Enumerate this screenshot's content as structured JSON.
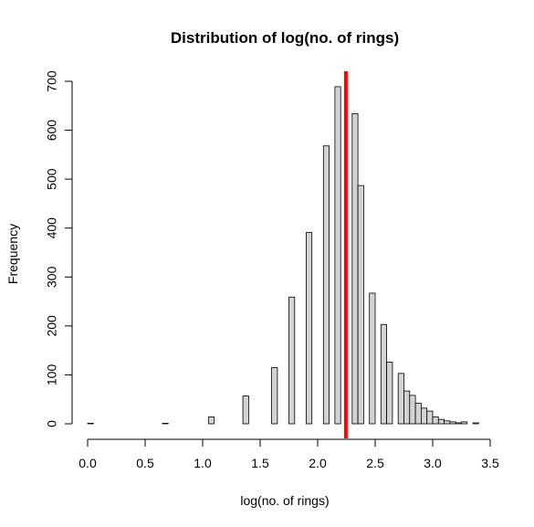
{
  "chart_data": {
    "type": "bar",
    "title": "Distribution of log(no. of rings)",
    "xlabel": "log(no. of rings)",
    "ylabel": "Frequency",
    "xlim": [
      0,
      3.5
    ],
    "ylim": [
      0,
      700
    ],
    "x_ticks": [
      "0.0",
      "0.5",
      "1.0",
      "1.5",
      "2.0",
      "2.5",
      "3.0",
      "3.5"
    ],
    "y_ticks": [
      "0",
      "100",
      "200",
      "300",
      "400",
      "500",
      "600",
      "700"
    ],
    "bin_width": 0.05,
    "bins_start": [
      0.0,
      0.05,
      0.1,
      0.15,
      0.2,
      0.25,
      0.3,
      0.35,
      0.4,
      0.45,
      0.5,
      0.55,
      0.6,
      0.65,
      0.7,
      0.75,
      0.8,
      0.85,
      0.9,
      0.95,
      1.0,
      1.05,
      1.1,
      1.15,
      1.2,
      1.25,
      1.3,
      1.35,
      1.4,
      1.45,
      1.5,
      1.55,
      1.6,
      1.65,
      1.7,
      1.75,
      1.8,
      1.85,
      1.9,
      1.95,
      2.0,
      2.05,
      2.1,
      2.15,
      2.2,
      2.25,
      2.3,
      2.35,
      2.4,
      2.45,
      2.5,
      2.55,
      2.6,
      2.65,
      2.7,
      2.75,
      2.8,
      2.85,
      2.9,
      2.95,
      3.0,
      3.05,
      3.1,
      3.15,
      3.2,
      3.25,
      3.3,
      3.35
    ],
    "counts": [
      1,
      0,
      0,
      0,
      0,
      0,
      0,
      0,
      0,
      0,
      0,
      0,
      0,
      1,
      0,
      0,
      0,
      0,
      0,
      0,
      0,
      14,
      0,
      0,
      0,
      0,
      0,
      57,
      0,
      0,
      0,
      0,
      115,
      0,
      0,
      259,
      0,
      0,
      391,
      0,
      0,
      568,
      0,
      689,
      0,
      0,
      634,
      487,
      0,
      267,
      0,
      203,
      126,
      0,
      103,
      67,
      58,
      42,
      32,
      26,
      14,
      9,
      6,
      4,
      2,
      4,
      0,
      2
    ],
    "vline": {
      "x": 2.245,
      "color": "#ff0000"
    },
    "bar_fill": "#d3d3d3",
    "grid": false
  }
}
